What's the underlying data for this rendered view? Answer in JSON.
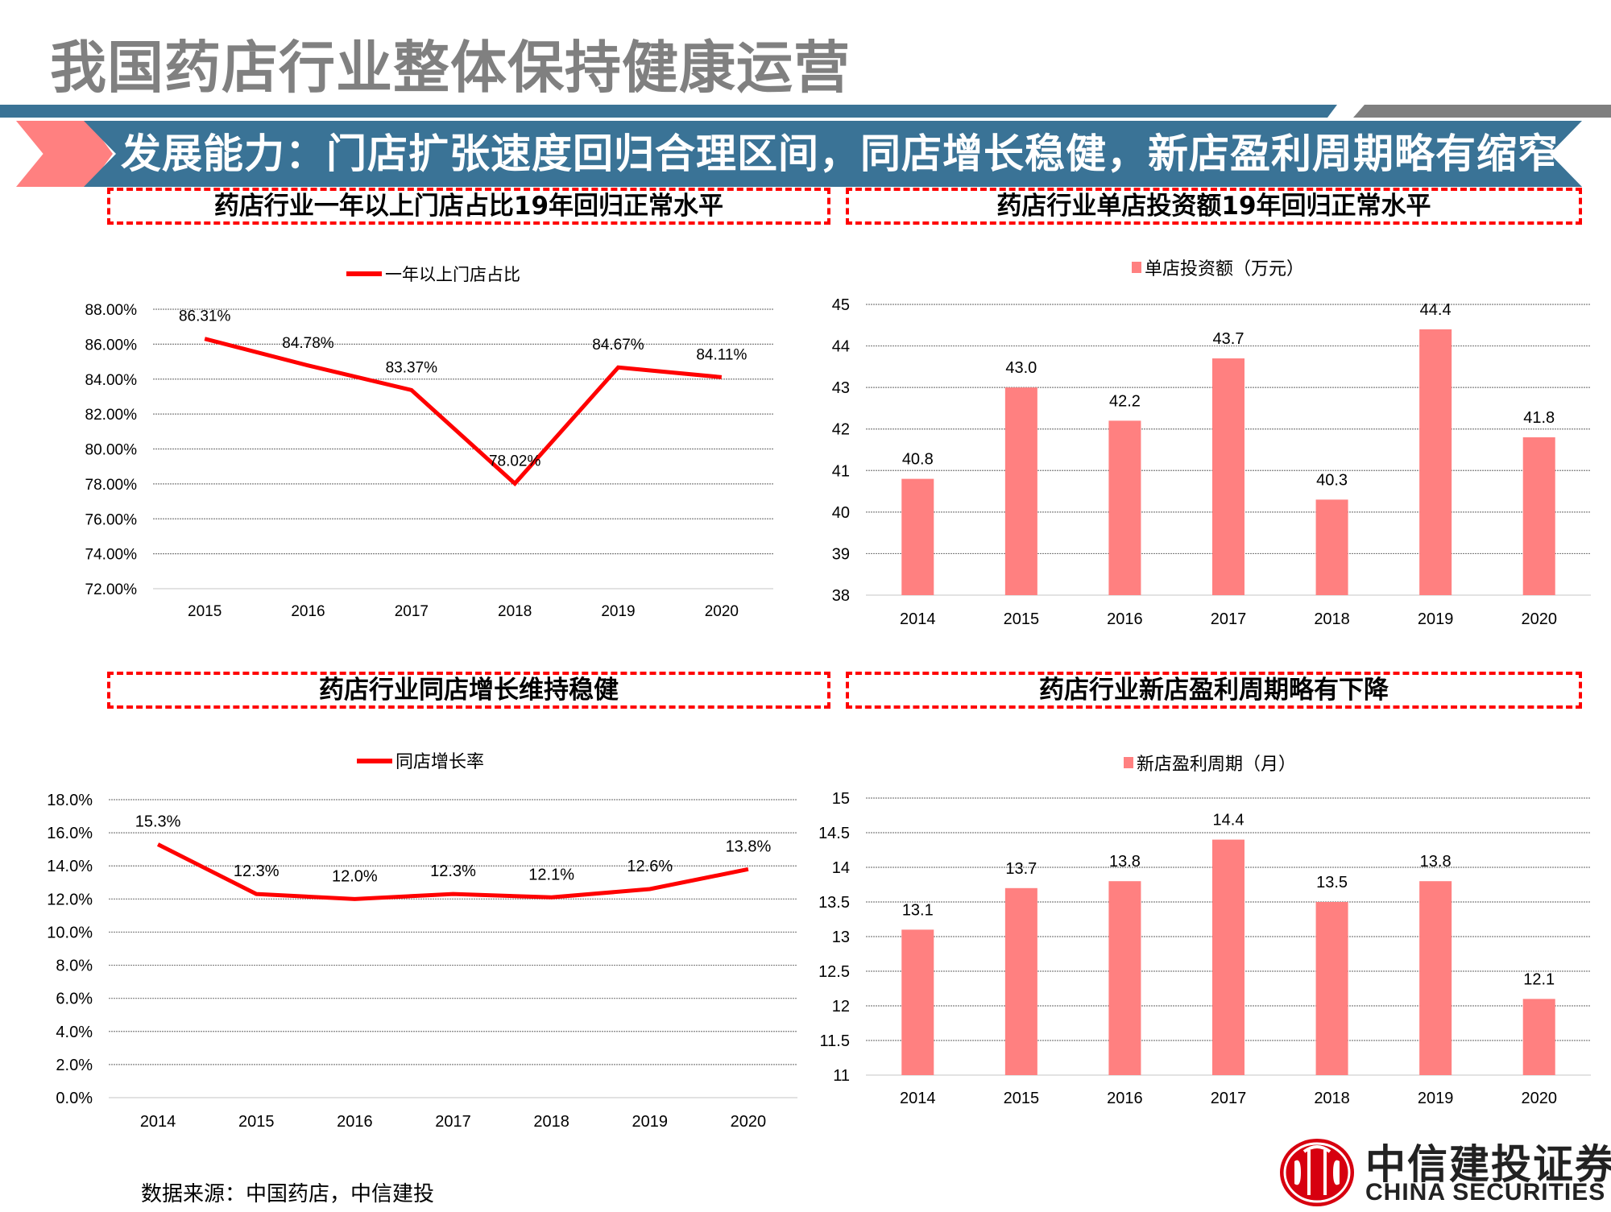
{
  "header": {
    "title": "我国药店行业整体保持健康运营",
    "banner": "发展能力：门店扩张速度回归合理区间，同店增长稳健，新店盈利周期略有缩窄"
  },
  "colors": {
    "banner_blue": "#3a7396",
    "chevron_pink": "#ff8080",
    "line_red": "#ff0000",
    "bar_pink": "#ff8080",
    "title_gray": "#808080",
    "dash_red": "#ff0000"
  },
  "panels": [
    {
      "title": "药店行业一年以上门店占比19年回归正常水平"
    },
    {
      "title": "药店行业单店投资额19年回归正常水平"
    },
    {
      "title": "药店行业同店增长维持稳健"
    },
    {
      "title": "药店行业新店盈利周期略有下降"
    }
  ],
  "chart_data": [
    {
      "type": "line",
      "title": "药店行业一年以上门店占比19年回归正常水平",
      "legend": "一年以上门店占比",
      "categories": [
        "2015",
        "2016",
        "2017",
        "2018",
        "2019",
        "2020"
      ],
      "values": [
        86.31,
        84.78,
        83.37,
        78.02,
        84.67,
        84.11
      ],
      "labels": [
        "86.31%",
        "84.78%",
        "83.37%",
        "78.02%",
        "84.67%",
        "84.11%"
      ],
      "yticks": [
        "72.00%",
        "74.00%",
        "76.00%",
        "78.00%",
        "80.00%",
        "82.00%",
        "84.00%",
        "86.00%",
        "88.00%"
      ],
      "ylim": [
        72,
        88
      ],
      "xlabel": "",
      "ylabel": "",
      "grid": true,
      "legend_position": "top"
    },
    {
      "type": "bar",
      "title": "药店行业单店投资额19年回归正常水平",
      "legend": "单店投资额（万元）",
      "categories": [
        "2014",
        "2015",
        "2016",
        "2017",
        "2018",
        "2019",
        "2020"
      ],
      "values": [
        40.8,
        43.0,
        42.2,
        43.7,
        40.3,
        44.4,
        41.8
      ],
      "labels": [
        "40.8",
        "43.0",
        "42.2",
        "43.7",
        "40.3",
        "44.4",
        "41.8"
      ],
      "yticks": [
        "38",
        "39",
        "40",
        "41",
        "42",
        "43",
        "44",
        "45"
      ],
      "ylim": [
        38,
        45
      ],
      "xlabel": "",
      "ylabel": "",
      "grid": true,
      "legend_position": "top"
    },
    {
      "type": "line",
      "title": "药店行业同店增长维持稳健",
      "legend": "同店增长率",
      "categories": [
        "2014",
        "2015",
        "2016",
        "2017",
        "2018",
        "2019",
        "2020"
      ],
      "values": [
        15.3,
        12.3,
        12.0,
        12.3,
        12.1,
        12.6,
        13.8
      ],
      "labels": [
        "15.3%",
        "12.3%",
        "12.0%",
        "12.3%",
        "12.1%",
        "12.6%",
        "13.8%"
      ],
      "yticks": [
        "0.0%",
        "2.0%",
        "4.0%",
        "6.0%",
        "8.0%",
        "10.0%",
        "12.0%",
        "14.0%",
        "16.0%",
        "18.0%"
      ],
      "ylim": [
        0,
        18
      ],
      "xlabel": "",
      "ylabel": "",
      "grid": true,
      "legend_position": "top"
    },
    {
      "type": "bar",
      "title": "药店行业新店盈利周期略有下降",
      "legend": "新店盈利周期（月）",
      "categories": [
        "2014",
        "2015",
        "2016",
        "2017",
        "2018",
        "2019",
        "2020"
      ],
      "values": [
        13.1,
        13.7,
        13.8,
        14.4,
        13.5,
        13.8,
        12.1
      ],
      "labels": [
        "13.1",
        "13.7",
        "13.8",
        "14.4",
        "13.5",
        "13.8",
        "12.1"
      ],
      "yticks": [
        "11",
        "11.5",
        "12",
        "12.5",
        "13",
        "13.5",
        "14",
        "14.5",
        "15"
      ],
      "ylim": [
        11,
        15
      ],
      "xlabel": "",
      "ylabel": "",
      "grid": true,
      "legend_position": "top"
    }
  ],
  "footer": {
    "source": "数据来源：中国药店，中信建投",
    "logo_cn": "中信建投证券",
    "logo_en": "CHINA SECURITIES"
  }
}
